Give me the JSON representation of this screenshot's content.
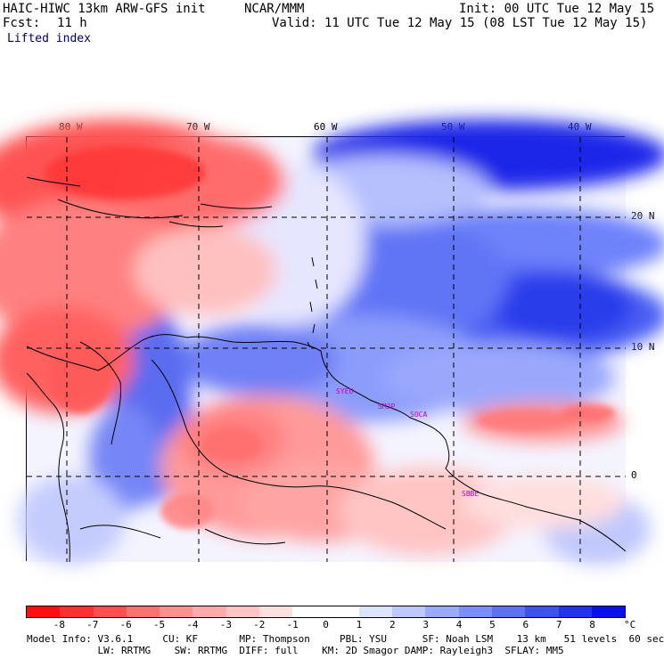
{
  "header": {
    "model": "HAIC-HIWC 13km ARW-GFS init",
    "org": "NCAR/MMM",
    "init": "Init: 00 UTC Tue 12 May 15",
    "fcst_label": "Fcst:",
    "fcst_value": "11 h",
    "valid": "Valid: 11 UTC Tue 12 May 15 (08 LST Tue 12 May 15)",
    "field": "Lifted index"
  },
  "map": {
    "lon_labels": [
      "80 W",
      "70 W",
      "60 W",
      "50 W",
      "40 W"
    ],
    "lat_labels": [
      "20 N",
      "10 N",
      "0"
    ],
    "stations": [
      "SYEU",
      "SMJP",
      "SOCA",
      "SBBE"
    ]
  },
  "colorbar": {
    "ticks": [
      "-8",
      "-7",
      "-6",
      "-5",
      "-4",
      "-3",
      "-2",
      "-1",
      "0",
      "1",
      "2",
      "3",
      "4",
      "5",
      "6",
      "7",
      "8"
    ],
    "unit": "°C",
    "colors": [
      "#ff1010",
      "#ff3030",
      "#ff5050",
      "#ff7070",
      "#ff9090",
      "#ffaaaa",
      "#ffc4c4",
      "#ffe0e0",
      "#ffffff",
      "#ffffff",
      "#dde4ff",
      "#bcc8ff",
      "#9aaaff",
      "#7c8efc",
      "#5e70f4",
      "#3e52ee",
      "#2434ea",
      "#0a10e6"
    ]
  },
  "footer": {
    "line1": "Model Info: V3.6.1     CU: KF       MP: Thompson     PBL: YSU      SF: Noah LSM    13 km   51 levels  60 sec",
    "line2": "            LW: RRTMG    SW: RRTMG  DIFF: full    KM: 2D Smagor DAMP: Rayleigh3  SFLAY: MM5"
  }
}
